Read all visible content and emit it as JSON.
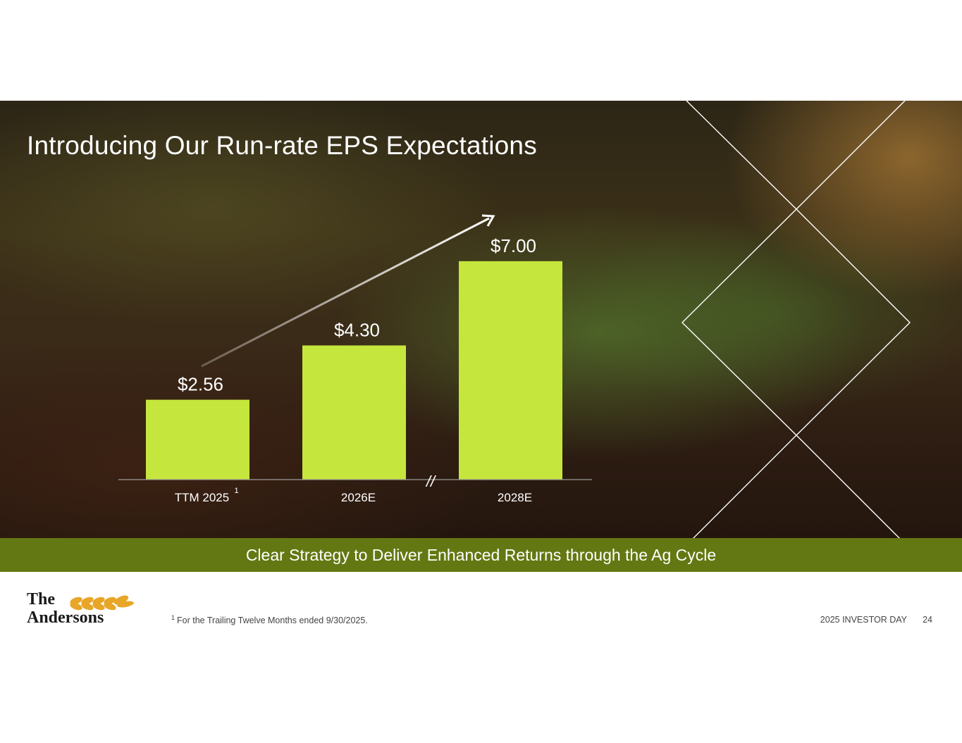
{
  "slide": {
    "title": "Introducing Our Run-rate EPS Expectations",
    "banner": "Clear Strategy to Deliver Enhanced Returns through the Ag Cycle",
    "footnote_marker": "1",
    "footnote_text": "For the Trailing Twelve Months ended 9/30/2025.",
    "event": "2025 INVESTOR DAY",
    "page_number": "24",
    "logo_line1": "The",
    "logo_line2": "Andersons"
  },
  "chart_data": {
    "type": "bar",
    "categories": [
      "TTM 2025",
      "2026E",
      "2028E"
    ],
    "category_footnotes": [
      "1",
      "",
      ""
    ],
    "values": [
      2.56,
      4.3,
      7.0
    ],
    "value_labels": [
      "$2.56",
      "$4.30",
      "$7.00"
    ],
    "title": "",
    "xlabel": "",
    "ylabel": "",
    "ylim": [
      0,
      7.9
    ],
    "axis_break_marker": "//",
    "grid": false,
    "trend_arrow": true,
    "colors": {
      "bar": "#c5e63c",
      "label": "#ffffff",
      "axis": "#9a9a9a",
      "banner": "#637812"
    }
  }
}
